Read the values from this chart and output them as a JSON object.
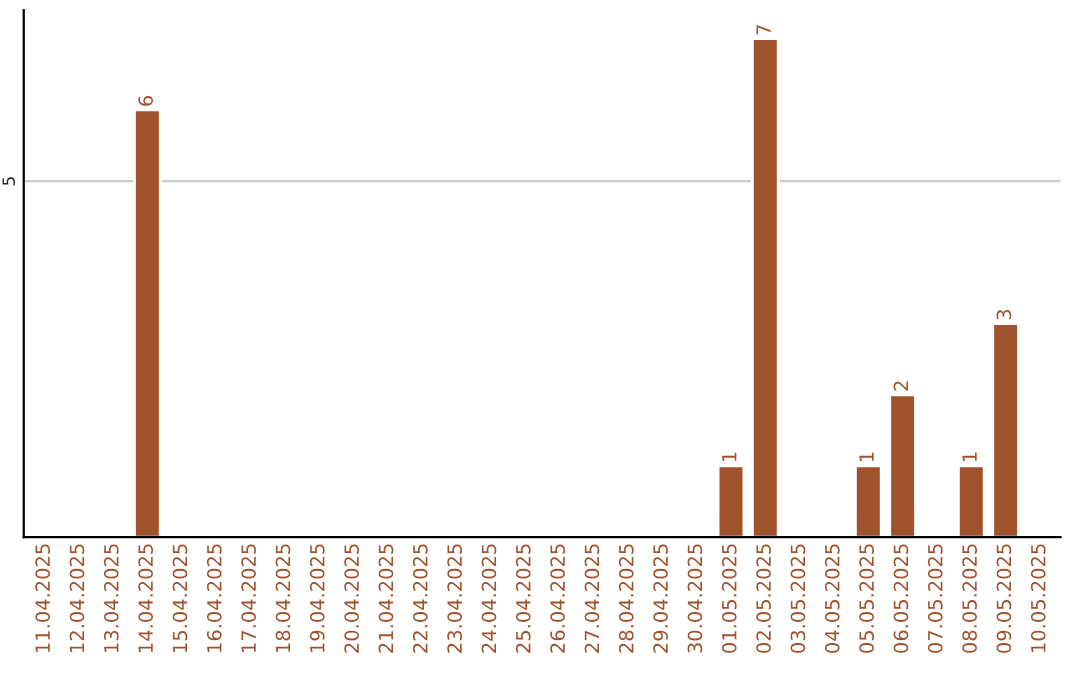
{
  "chart_data": {
    "type": "bar",
    "categories": [
      "11.04.2025",
      "12.04.2025",
      "13.04.2025",
      "14.04.2025",
      "15.04.2025",
      "16.04.2025",
      "17.04.2025",
      "18.04.2025",
      "19.04.2025",
      "20.04.2025",
      "21.04.2025",
      "22.04.2025",
      "23.04.2025",
      "24.04.2025",
      "25.04.2025",
      "26.04.2025",
      "27.04.2025",
      "28.04.2025",
      "29.04.2025",
      "30.04.2025",
      "01.05.2025",
      "02.05.2025",
      "03.05.2025",
      "04.05.2025",
      "05.05.2025",
      "06.05.2025",
      "07.05.2025",
      "08.05.2025",
      "09.05.2025",
      "10.05.2025"
    ],
    "values": [
      null,
      null,
      null,
      6,
      null,
      null,
      null,
      null,
      null,
      null,
      null,
      null,
      null,
      null,
      null,
      null,
      null,
      null,
      null,
      null,
      1,
      7,
      null,
      null,
      1,
      2,
      null,
      1,
      3,
      null
    ],
    "value_labels": [
      null,
      null,
      null,
      "6",
      null,
      null,
      null,
      null,
      null,
      null,
      null,
      null,
      null,
      null,
      null,
      null,
      null,
      null,
      null,
      null,
      "1",
      "7",
      null,
      null,
      "1",
      "2",
      null,
      "1",
      "3",
      null
    ],
    "color": "#a0522d",
    "ylim": [
      0,
      7.4
    ],
    "yticks": [
      5
    ],
    "grid": "y"
  }
}
